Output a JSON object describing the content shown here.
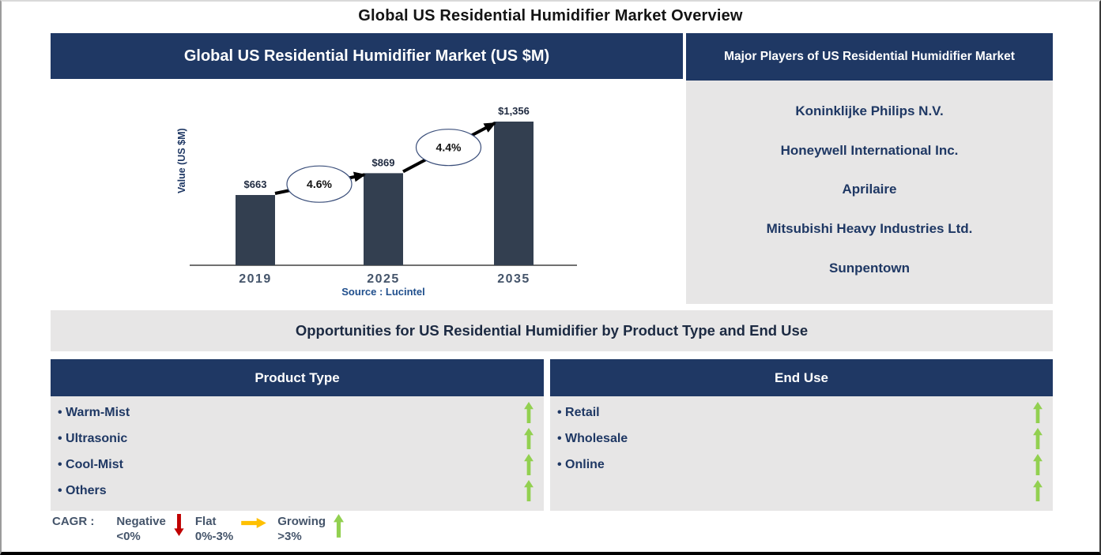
{
  "page_title": "Global US Residential Humidifier Market Overview",
  "market_chart": {
    "header": "Global US Residential Humidifier Market (US $M)"
  },
  "chart_data": {
    "type": "bar",
    "title": "Global US Residential Humidifier Market (US $M)",
    "categories": [
      "2019",
      "2025",
      "2035"
    ],
    "values": [
      663,
      869,
      1356
    ],
    "bar_labels": [
      "$663",
      "$869",
      "$1,356"
    ],
    "ylabel": "Value (US $M)",
    "xlabel": "",
    "ylim": [
      0,
      1450
    ],
    "grid": false,
    "legend_position": "none",
    "source": "Source : Lucintel",
    "cagr_annotations": [
      {
        "from": "2019",
        "to": "2025",
        "label": "4.6%"
      },
      {
        "from": "2025",
        "to": "2035",
        "label": "4.4%"
      }
    ]
  },
  "major_players": {
    "header": "Major Players of US Residential Humidifier Market",
    "companies": [
      "Koninklijke Philips N.V.",
      "Honeywell International Inc.",
      "Aprilaire",
      "Mitsubishi Heavy Industries Ltd.",
      "Sunpentown"
    ]
  },
  "opportunities": {
    "title": "Opportunities for US Residential Humidifier by Product Type and End Use",
    "product_type": {
      "header": "Product Type",
      "items": [
        {
          "label": "Warm-Mist",
          "trend": "growing"
        },
        {
          "label": "Ultrasonic",
          "trend": "growing"
        },
        {
          "label": "Cool-Mist",
          "trend": "growing"
        },
        {
          "label": "Others",
          "trend": "growing"
        }
      ]
    },
    "end_use": {
      "header": "End Use",
      "items": [
        {
          "label": "Retail",
          "trend": "growing"
        },
        {
          "label": "Wholesale",
          "trend": "growing"
        },
        {
          "label": "Online",
          "trend": "growing"
        },
        {
          "label": "",
          "trend": "growing"
        }
      ]
    }
  },
  "legend": {
    "label": "CAGR :",
    "entries": [
      {
        "name": "Negative",
        "range": "<0%",
        "direction": "down",
        "color": "#C00000"
      },
      {
        "name": "Flat",
        "range": "0%-3%",
        "direction": "right",
        "color": "#FFC000"
      },
      {
        "name": "Growing",
        "range": ">3%",
        "direction": "up",
        "color": "#92D050"
      }
    ]
  },
  "colors": {
    "navy_header": "#1F3864",
    "panel_gray": "#E7E6E6",
    "bar": "#333F50",
    "axis_text": "#44546A",
    "source_text": "#1F4E8C",
    "growing_green": "#92D050",
    "negative_red": "#C00000",
    "flat_yellow": "#FFC000"
  }
}
